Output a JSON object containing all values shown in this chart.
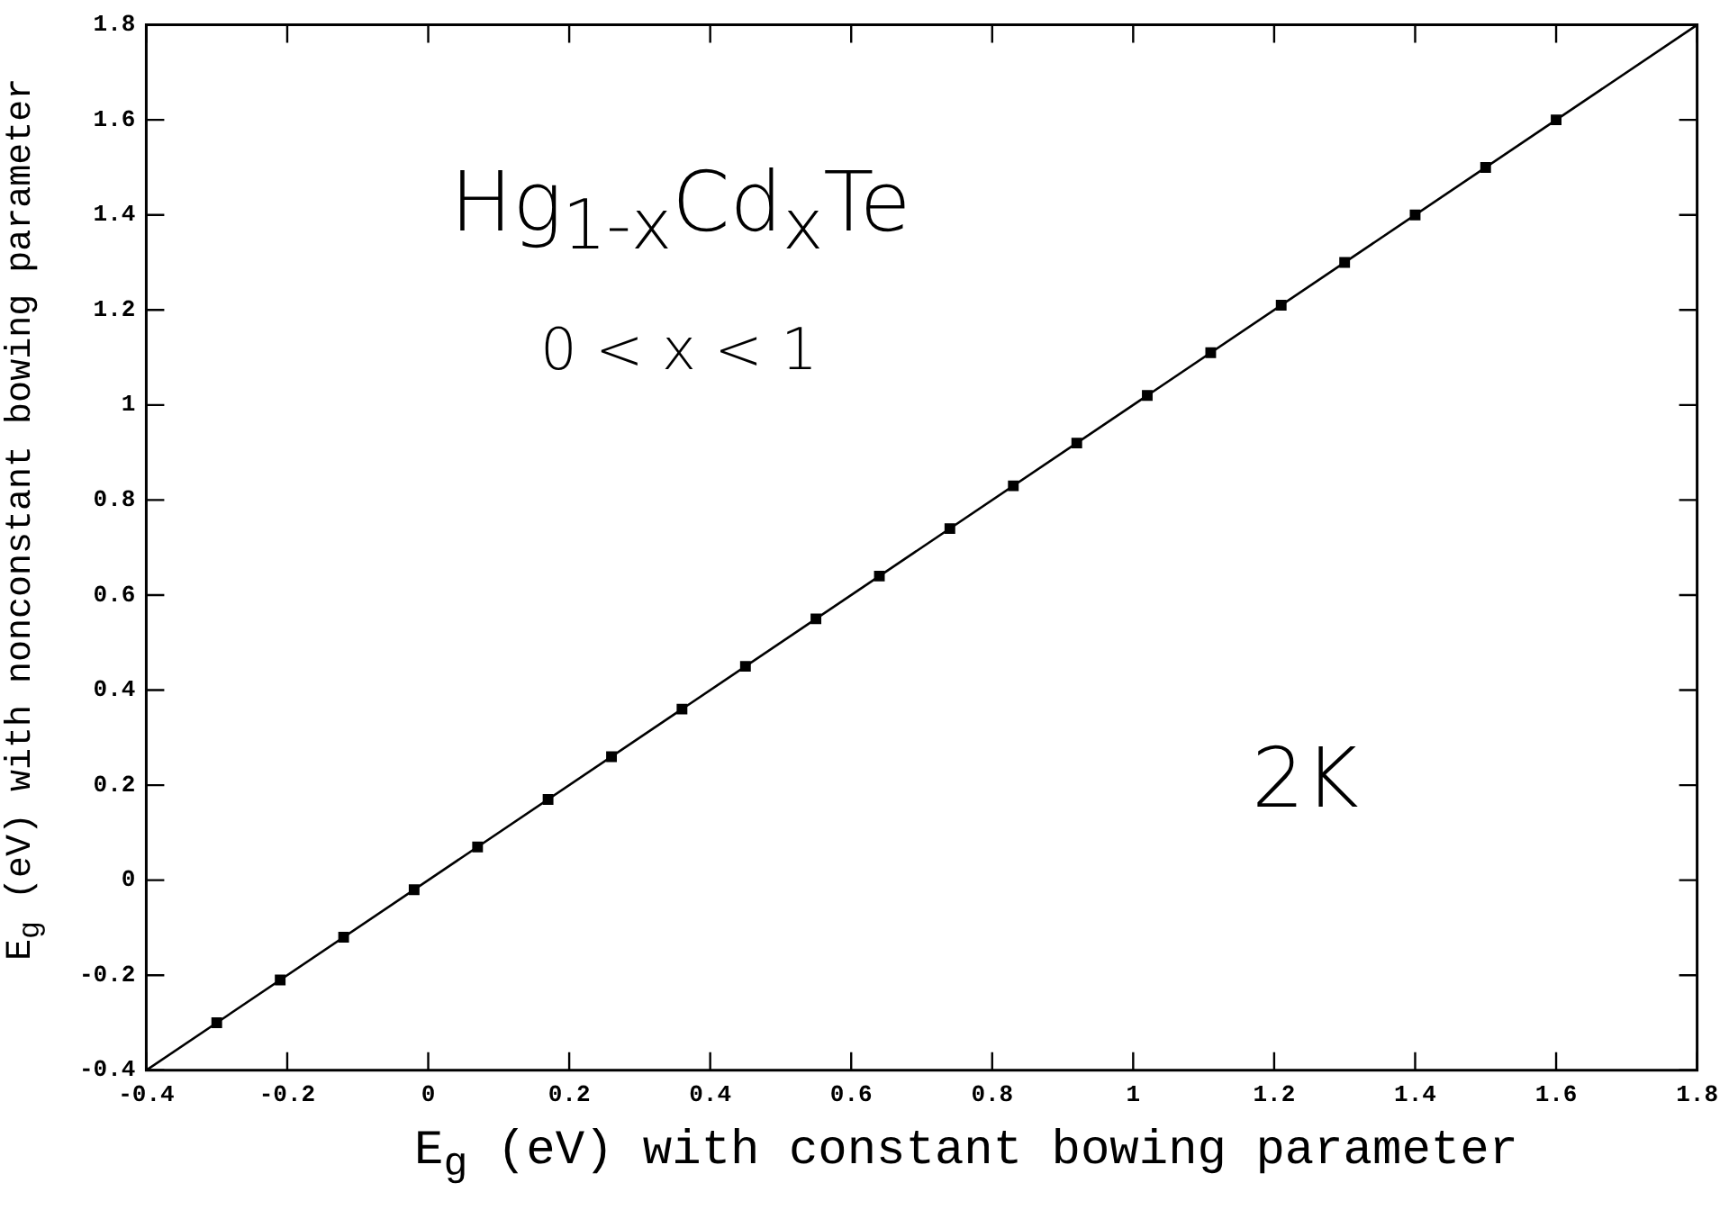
{
  "chart_data": {
    "type": "scatter",
    "xlabel": "E$_{g}$  (eV)  with constant bowing parameter",
    "ylabel": "E$_{g}$  (eV)  with nonconstant bowing parameter",
    "annotations": [
      "Hg$_{1-x}$Cd$_{x}$Te",
      "0 < x < 1",
      "2K"
    ],
    "xlim": [
      -0.4,
      1.8
    ],
    "ylim": [
      -0.4,
      1.8
    ],
    "xticks": [
      -0.4,
      -0.2,
      0,
      0.2,
      0.4,
      0.6,
      0.8,
      1,
      1.2,
      1.4,
      1.6,
      1.8
    ],
    "yticks": [
      -0.4,
      -0.2,
      0,
      0.2,
      0.4,
      0.6,
      0.8,
      1,
      1.2,
      1.4,
      1.6,
      1.8
    ],
    "marker": "square",
    "legend": false,
    "series": [
      {
        "type": "line",
        "color": "#000000",
        "marker": "none",
        "x": [
          -0.4,
          1.8
        ],
        "values": [
          -0.4,
          1.8
        ]
      },
      {
        "type": "scatter",
        "color": "#000000",
        "x": [
          -0.3,
          -0.21,
          -0.12,
          -0.02,
          0.07,
          0.17,
          0.26,
          0.36,
          0.45,
          0.55,
          0.64,
          0.74,
          0.83,
          0.92,
          1.02,
          1.11,
          1.21,
          1.3,
          1.4,
          1.5,
          1.6
        ],
        "values": [
          -0.3,
          -0.21,
          -0.12,
          -0.02,
          0.07,
          0.17,
          0.26,
          0.36,
          0.45,
          0.55,
          0.64,
          0.74,
          0.83,
          0.92,
          1.02,
          1.11,
          1.21,
          1.3,
          1.4,
          1.5,
          1.6
        ]
      }
    ]
  }
}
